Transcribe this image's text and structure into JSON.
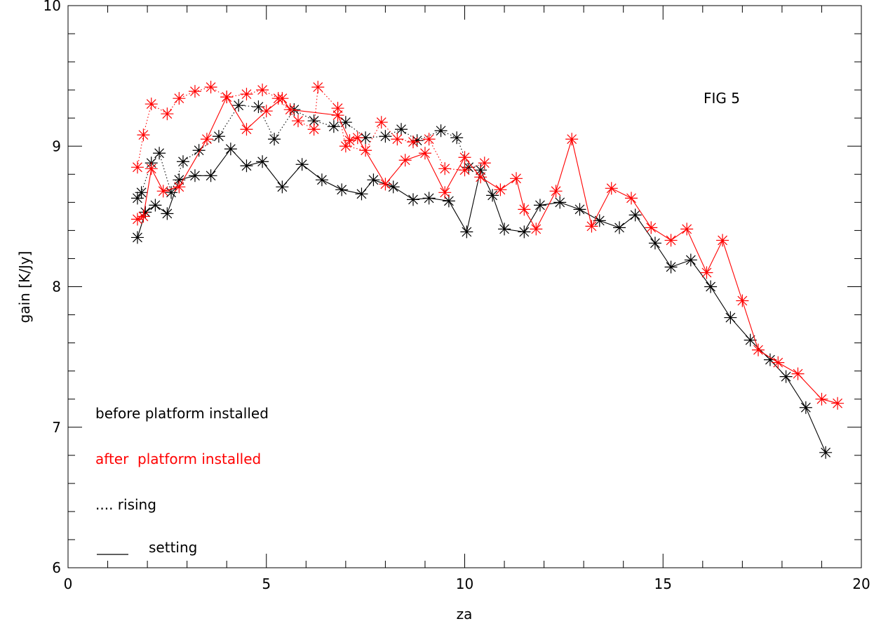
{
  "chart_data": {
    "type": "scatter",
    "title": "",
    "xlabel": "za",
    "ylabel": "gain [K/Jy]",
    "xlim": [
      0,
      20
    ],
    "ylim": [
      6,
      10
    ],
    "x_ticks": [
      "0",
      "5",
      "10",
      "15",
      "20"
    ],
    "y_ticks": [
      "6",
      "7",
      "8",
      "9",
      "10"
    ],
    "grid": false,
    "marker": "asterisk",
    "colors": {
      "before": "#000000",
      "after": "#ff0000"
    },
    "annotations": {
      "fig_label": "FIG 5",
      "legend_before": "before platform installed",
      "legend_after": "after  platform installed",
      "legend_rising": ".... rising",
      "legend_setting": "setting"
    },
    "series": [
      {
        "group": "before",
        "style": "dotted",
        "points": [
          [
            1.75,
            8.63
          ],
          [
            1.85,
            8.67
          ],
          [
            2.1,
            8.88
          ],
          [
            2.3,
            8.95
          ],
          [
            2.6,
            8.67
          ],
          [
            2.9,
            8.89
          ],
          [
            3.3,
            8.97
          ],
          [
            3.8,
            9.07
          ],
          [
            4.3,
            9.29
          ],
          [
            4.8,
            9.28
          ],
          [
            5.2,
            9.05
          ],
          [
            5.7,
            9.26
          ],
          [
            6.2,
            9.18
          ],
          [
            6.7,
            9.14
          ],
          [
            7.0,
            9.17
          ],
          [
            7.5,
            9.06
          ],
          [
            8.0,
            9.07
          ],
          [
            8.4,
            9.12
          ],
          [
            8.8,
            9.04
          ],
          [
            9.4,
            9.11
          ],
          [
            9.8,
            9.06
          ],
          [
            10.1,
            8.85
          ]
        ]
      },
      {
        "group": "before",
        "style": "solid",
        "points": [
          [
            1.75,
            8.35
          ],
          [
            1.95,
            8.53
          ],
          [
            2.2,
            8.58
          ],
          [
            2.5,
            8.52
          ],
          [
            2.8,
            8.76
          ],
          [
            3.2,
            8.79
          ],
          [
            3.6,
            8.79
          ],
          [
            4.1,
            8.98
          ],
          [
            4.5,
            8.86
          ],
          [
            4.9,
            8.89
          ],
          [
            5.4,
            8.71
          ],
          [
            5.9,
            8.87
          ],
          [
            6.4,
            8.76
          ],
          [
            6.9,
            8.69
          ],
          [
            7.4,
            8.66
          ],
          [
            7.7,
            8.76
          ],
          [
            8.2,
            8.71
          ],
          [
            8.7,
            8.62
          ],
          [
            9.1,
            8.63
          ],
          [
            9.6,
            8.61
          ],
          [
            10.05,
            8.39
          ],
          [
            10.4,
            8.83
          ],
          [
            10.7,
            8.65
          ],
          [
            11.0,
            8.41
          ],
          [
            11.5,
            8.39
          ],
          [
            11.9,
            8.58
          ],
          [
            12.4,
            8.6
          ],
          [
            12.9,
            8.55
          ],
          [
            13.4,
            8.47
          ],
          [
            13.9,
            8.42
          ],
          [
            14.3,
            8.51
          ],
          [
            14.8,
            8.31
          ],
          [
            15.2,
            8.14
          ],
          [
            15.7,
            8.19
          ],
          [
            16.2,
            8.0
          ],
          [
            16.7,
            7.78
          ],
          [
            17.2,
            7.62
          ],
          [
            17.7,
            7.48
          ],
          [
            18.1,
            7.36
          ],
          [
            18.6,
            7.14
          ],
          [
            19.1,
            6.82
          ]
        ]
      },
      {
        "group": "after",
        "style": "dotted",
        "points": [
          [
            1.75,
            8.85
          ],
          [
            1.9,
            9.08
          ],
          [
            2.1,
            9.3
          ],
          [
            2.5,
            9.23
          ],
          [
            2.8,
            9.34
          ],
          [
            3.2,
            9.39
          ],
          [
            3.6,
            9.42
          ],
          [
            4.0,
            9.35
          ],
          [
            4.5,
            9.37
          ],
          [
            4.9,
            9.4
          ],
          [
            5.3,
            9.34
          ],
          [
            5.8,
            9.18
          ],
          [
            6.2,
            9.12
          ],
          [
            6.3,
            9.42
          ],
          [
            6.8,
            9.27
          ],
          [
            7.0,
            9.0
          ],
          [
            7.5,
            8.97
          ],
          [
            7.9,
            9.17
          ],
          [
            8.3,
            9.05
          ],
          [
            8.7,
            9.03
          ],
          [
            9.1,
            9.05
          ],
          [
            9.5,
            8.84
          ],
          [
            10.0,
            8.83
          ],
          [
            10.5,
            8.88
          ]
        ]
      },
      {
        "group": "after",
        "style": "solid",
        "points": [
          [
            1.75,
            8.48
          ],
          [
            1.9,
            8.5
          ],
          [
            2.1,
            8.84
          ],
          [
            2.4,
            8.68
          ],
          [
            2.8,
            8.71
          ],
          [
            3.5,
            9.05
          ],
          [
            4.0,
            9.35
          ],
          [
            4.5,
            9.12
          ],
          [
            5.0,
            9.25
          ],
          [
            5.4,
            9.34
          ],
          [
            5.6,
            9.26
          ],
          [
            6.8,
            9.22
          ],
          [
            7.1,
            9.04
          ],
          [
            7.3,
            9.06
          ],
          [
            8.0,
            8.73
          ],
          [
            8.5,
            8.9
          ],
          [
            9.0,
            8.95
          ],
          [
            9.5,
            8.67
          ],
          [
            10.0,
            8.92
          ],
          [
            10.4,
            8.78
          ],
          [
            10.9,
            8.69
          ],
          [
            11.3,
            8.77
          ],
          [
            11.5,
            8.55
          ],
          [
            11.8,
            8.41
          ],
          [
            12.3,
            8.68
          ],
          [
            12.7,
            9.05
          ],
          [
            13.2,
            8.43
          ],
          [
            13.7,
            8.7
          ],
          [
            14.2,
            8.63
          ],
          [
            14.7,
            8.42
          ],
          [
            15.2,
            8.33
          ],
          [
            15.6,
            8.41
          ],
          [
            16.1,
            8.1
          ],
          [
            16.5,
            8.33
          ],
          [
            17.0,
            7.9
          ],
          [
            17.4,
            7.55
          ],
          [
            17.9,
            7.46
          ],
          [
            18.4,
            7.38
          ],
          [
            19.0,
            7.2
          ],
          [
            19.4,
            7.17
          ]
        ]
      }
    ]
  }
}
